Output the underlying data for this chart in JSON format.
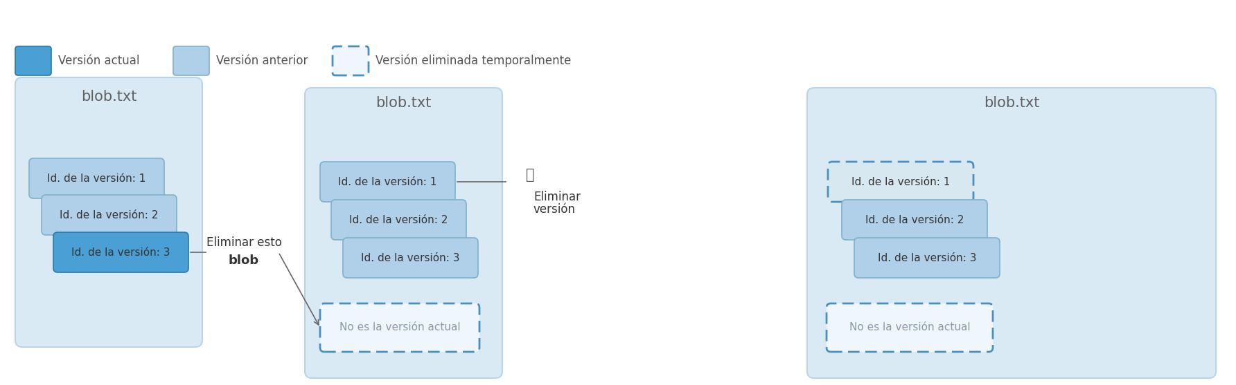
{
  "bg_color": "#ffffff",
  "container_bg": "#daeaf5",
  "container_border": "#b8d4e8",
  "version_light_color": "#b0cfe8",
  "version_current_color": "#4a9fd4",
  "version_deleted_fill": "#d8e8f0",
  "version_deleted_border": "#4a90bf",
  "dashed_box_fill": "#f0f7fc",
  "dashed_box_border": "#4a90bf",
  "title_color": "#606060",
  "text_color": "#333333",
  "soft_deleted_text_color": "#8a9aaa",
  "arrow_color": "#666666",
  "blob_title": "blob.txt",
  "version_labels": [
    "Id. de la versión: 1",
    "Id. de la versión: 2",
    "Id. de la versión: 3"
  ],
  "not_current_label": "No es la versión actual",
  "legend_current": "Versión actual",
  "legend_previous": "Versión anterior",
  "legend_softdeleted": "Versión eliminada temporalmente"
}
